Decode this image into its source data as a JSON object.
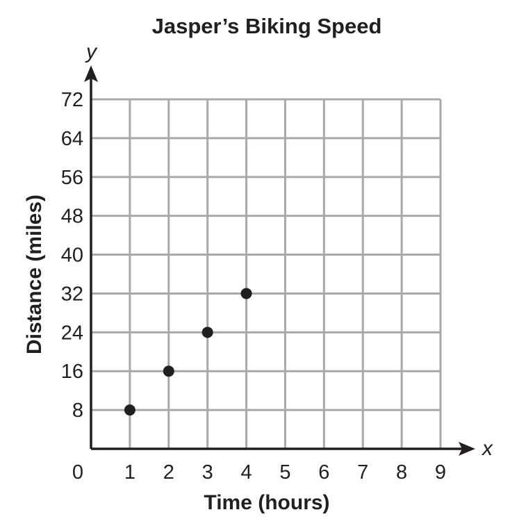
{
  "chart_data": {
    "type": "scatter",
    "title": "Jasper’s Biking Speed",
    "xlabel": "Time (hours)",
    "ylabel": "Distance (miles)",
    "x_axis_var": "x",
    "y_axis_var": "y",
    "xlim": [
      0,
      9
    ],
    "ylim": [
      0,
      72
    ],
    "x_ticks": [
      "0",
      "1",
      "2",
      "3",
      "4",
      "5",
      "6",
      "7",
      "8",
      "9"
    ],
    "y_ticks": [
      "8",
      "16",
      "24",
      "32",
      "40",
      "48",
      "56",
      "64",
      "72"
    ],
    "grid": true,
    "point_color": "#231f20",
    "grid_color": "#a7a9ac",
    "points": [
      {
        "x": 1,
        "y": 8
      },
      {
        "x": 2,
        "y": 16
      },
      {
        "x": 3,
        "y": 24
      },
      {
        "x": 4,
        "y": 32
      }
    ]
  }
}
